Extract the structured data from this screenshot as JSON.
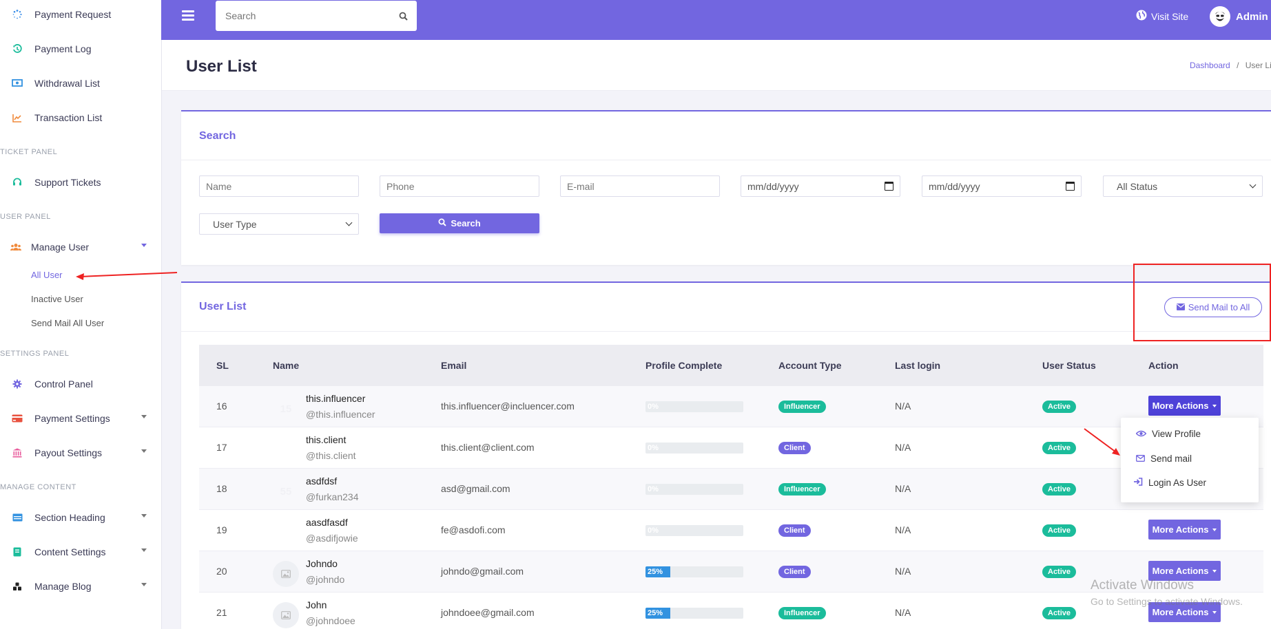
{
  "sidebar": {
    "items": [
      {
        "label": "Payment Request",
        "icon": "spinner-icon",
        "color": "#3b8ee8"
      },
      {
        "label": "Payment Log",
        "icon": "history-icon",
        "color": "#1bbc9b"
      },
      {
        "label": "Withdrawal List",
        "icon": "money-bill-icon",
        "color": "#3292e0"
      },
      {
        "label": "Transaction List",
        "icon": "chart-line-icon",
        "color": "#f08a3c"
      }
    ],
    "ticket_panel": "Ticket Panel",
    "support_tickets": "Support Tickets",
    "user_panel": "User Panel",
    "manage_user": "Manage User",
    "sub_items": [
      "All User",
      "Inactive User",
      "Send Mail All User"
    ],
    "settings_panel": "Settings Panel",
    "control_panel": "Control Panel",
    "payment_settings": "Payment Settings",
    "payout_settings": "Payout Settings",
    "manage_content": "Manage Content",
    "section_heading": "Section Heading",
    "content_settings": "Content Settings",
    "manage_blog": "Manage Blog"
  },
  "topbar": {
    "search_placeholder": "Search",
    "visit_site": "Visit Site",
    "admin": "Admin",
    "accent": "#7266e0"
  },
  "page": {
    "title": "User List",
    "breadcrumb_home": "Dashboard",
    "breadcrumb_sep": "/",
    "breadcrumb_current": "User Lis"
  },
  "search_card": {
    "title": "Search",
    "name_placeholder": "Name",
    "phone_placeholder": "Phone",
    "email_placeholder": "E-mail",
    "date_from": "mm/dd/yyyy",
    "date_to": "mm/dd/yyyy",
    "status_select": "All Status",
    "user_type_select": "User Type",
    "search_button": "Search"
  },
  "list_card": {
    "title": "User List",
    "send_mail_button": "Send Mail to All"
  },
  "table": {
    "headers": [
      "SL",
      "Name",
      "Email",
      "Profile Complete",
      "Account Type",
      "Last login",
      "User Status",
      "Action"
    ],
    "rows": [
      {
        "sl": "16",
        "name": "this.influencer",
        "handle": "@this.influencer",
        "email": "this.influencer@incluencer.com",
        "progress": "0%",
        "progress_value": 0,
        "type": "Influencer",
        "last_login": "N/A",
        "status": "Active",
        "action": "More Actions",
        "avatar": "ghost",
        "avatar_text": "15"
      },
      {
        "sl": "17",
        "name": "this.client",
        "handle": "@this.client",
        "email": "this.client@client.com",
        "progress": "0%",
        "progress_value": 0,
        "type": "Client",
        "last_login": "N/A",
        "status": "Active",
        "action": "",
        "avatar": "none",
        "avatar_text": ""
      },
      {
        "sl": "18",
        "name": "asdfdsf",
        "handle": "@furkan234",
        "email": "asd@gmail.com",
        "progress": "0%",
        "progress_value": 0,
        "type": "Influencer",
        "last_login": "N/A",
        "status": "Active",
        "action": "",
        "avatar": "ghost",
        "avatar_text": "55"
      },
      {
        "sl": "19",
        "name": "aasdfasdf",
        "handle": "@asdifjowie",
        "email": "fe@asdofi.com",
        "progress": "0%",
        "progress_value": 0,
        "type": "Client",
        "last_login": "N/A",
        "status": "Active",
        "action": "More Actions",
        "avatar": "none",
        "avatar_text": ""
      },
      {
        "sl": "20",
        "name": "Johndo",
        "handle": "@johndo",
        "email": "johndo@gmail.com",
        "progress": "25%",
        "progress_value": 25,
        "type": "Client",
        "last_login": "N/A",
        "status": "Active",
        "action": "More Actions",
        "avatar": "image",
        "avatar_text": ""
      },
      {
        "sl": "21",
        "name": "John",
        "handle": "@johndoee",
        "email": "johndoee@gmail.com",
        "progress": "25%",
        "progress_value": 25,
        "type": "Influencer",
        "last_login": "N/A",
        "status": "Active",
        "action": "More Actions",
        "avatar": "image",
        "avatar_text": ""
      }
    ]
  },
  "dropdown": {
    "items": [
      {
        "label": "View Profile",
        "icon": "eye-icon"
      },
      {
        "label": "Send mail",
        "icon": "envelope-icon"
      },
      {
        "label": "Login As User",
        "icon": "sign-in-icon"
      }
    ]
  },
  "watermark": {
    "line1": "Activate Windows",
    "line2": "Go to Settings to activate Windows."
  }
}
